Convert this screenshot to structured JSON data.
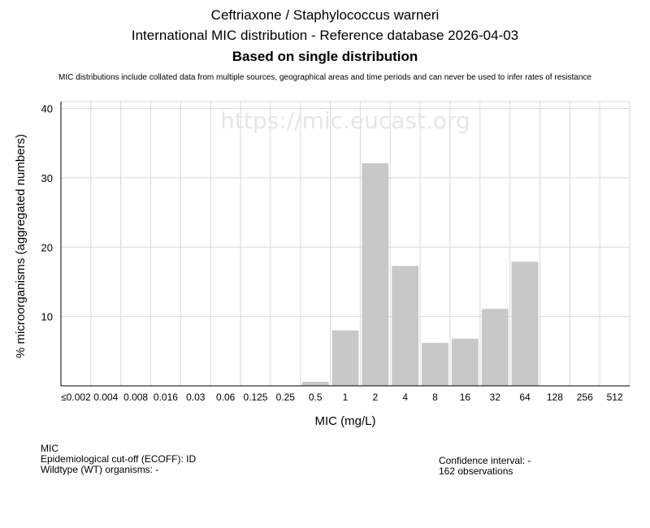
{
  "header": {
    "title": "Ceftriaxone / Staphylococcus warneri",
    "subtitle": "International MIC distribution - Reference database 2026-04-03",
    "subtitle2": "Based on single distribution",
    "note": "MIC distributions include collated data from multiple sources, geographical areas and time periods and can never be used to infer rates of resistance"
  },
  "watermark": "https://mic.eucast.org",
  "chart_data": {
    "type": "bar",
    "xlabel": "MIC (mg/L)",
    "ylabel": "% microorganisms (aggregated numbers)",
    "ylim": [
      0,
      41
    ],
    "yticks": [
      10,
      20,
      30,
      40
    ],
    "grid": true,
    "categories": [
      "≤0.002",
      "0.004",
      "0.008",
      "0.016",
      "0.03",
      "0.06",
      "0.125",
      "0.25",
      "0.5",
      "1",
      "2",
      "4",
      "8",
      "16",
      "32",
      "64",
      "128",
      "256",
      "512"
    ],
    "values": [
      0,
      0,
      0,
      0,
      0,
      0,
      0,
      0,
      0.6,
      8.0,
      32.1,
      17.3,
      6.2,
      6.8,
      11.1,
      17.9,
      0,
      0,
      0
    ],
    "bar_color": "#c8c8c8"
  },
  "footer": {
    "left": [
      "MIC",
      "Epidemiological cut-off (ECOFF): ID",
      "Wildtype (WT) organisms:  -"
    ],
    "right": [
      "Confidence interval: -",
      "162 observations"
    ]
  }
}
